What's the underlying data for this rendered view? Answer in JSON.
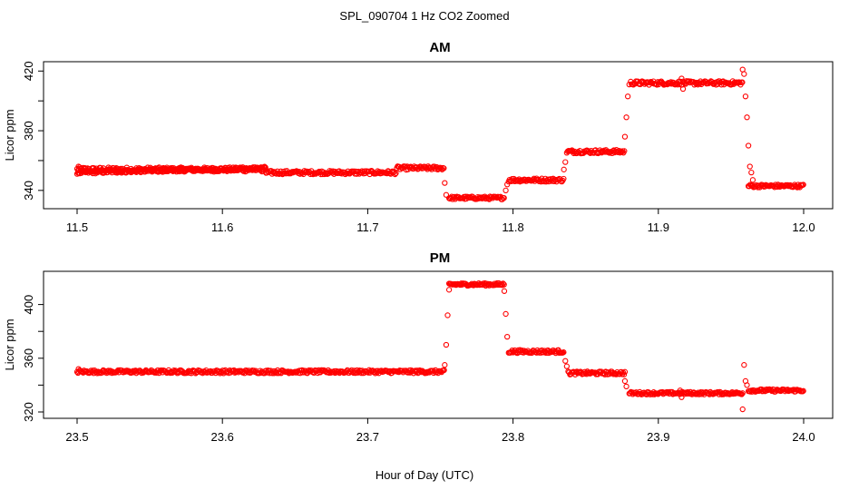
{
  "figure": {
    "title": "SPL_090704  1 Hz CO2 Zoomed",
    "xlabel": "Hour of Day (UTC)"
  },
  "colors": {
    "points": "#ff0000",
    "axis": "#000000"
  },
  "chart_data": [
    {
      "type": "scatter",
      "title": "AM",
      "xlabel": "Hour of Day (UTC)",
      "ylabel": "Licor ppm",
      "xlim": [
        11.5,
        12.0
      ],
      "ylim": [
        332.0,
        422.0
      ],
      "xticks": [
        11.5,
        11.6,
        11.7,
        11.8,
        11.9,
        12.0
      ],
      "xtick_labels": [
        "11.5",
        "11.6",
        "11.7",
        "11.8",
        "11.9",
        "12.0"
      ],
      "yticks": [
        340,
        360,
        380,
        400,
        420
      ],
      "ytick_labels": [
        "340",
        "",
        "380",
        "",
        "420"
      ],
      "marker": "open-circle",
      "color": "#ff0000",
      "segments": [
        {
          "x": [
            11.5,
            11.63
          ],
          "y": [
            354,
            354
          ],
          "jitter": 1.5
        },
        {
          "x": [
            11.5,
            11.63
          ],
          "y": [
            352,
            355
          ],
          "jitter": 1.0
        },
        {
          "x": [
            11.63,
            11.72
          ],
          "y": [
            352,
            352
          ],
          "jitter": 1.2
        },
        {
          "x": [
            11.72,
            11.753
          ],
          "y": [
            355,
            355
          ],
          "jitter": 1.2
        },
        {
          "x": [
            11.756,
            11.794
          ],
          "y": [
            335,
            335
          ],
          "jitter": 1.0
        },
        {
          "x": [
            11.797,
            11.835
          ],
          "y": [
            347,
            347
          ],
          "jitter": 1.2
        },
        {
          "x": [
            11.837,
            11.877
          ],
          "y": [
            366,
            366
          ],
          "jitter": 1.2
        },
        {
          "x": [
            11.881,
            11.958
          ],
          "y": [
            412,
            412
          ],
          "jitter": 1.3
        },
        {
          "x": [
            11.962,
            12.0
          ],
          "y": [
            343,
            343
          ],
          "jitter": 1.0
        }
      ],
      "extra_points": [
        {
          "x": 11.501,
          "y": 356
        },
        {
          "x": 11.753,
          "y": 345
        },
        {
          "x": 11.754,
          "y": 337
        },
        {
          "x": 11.795,
          "y": 340
        },
        {
          "x": 11.796,
          "y": 344
        },
        {
          "x": 11.835,
          "y": 354
        },
        {
          "x": 11.836,
          "y": 359
        },
        {
          "x": 11.877,
          "y": 376
        },
        {
          "x": 11.878,
          "y": 389
        },
        {
          "x": 11.879,
          "y": 403
        },
        {
          "x": 11.88,
          "y": 411
        },
        {
          "x": 11.916,
          "y": 415
        },
        {
          "x": 11.917,
          "y": 408
        },
        {
          "x": 11.958,
          "y": 421
        },
        {
          "x": 11.959,
          "y": 418
        },
        {
          "x": 11.96,
          "y": 403
        },
        {
          "x": 11.961,
          "y": 389
        },
        {
          "x": 11.962,
          "y": 370
        },
        {
          "x": 11.963,
          "y": 356
        },
        {
          "x": 11.964,
          "y": 352
        },
        {
          "x": 11.965,
          "y": 347
        }
      ]
    },
    {
      "type": "scatter",
      "title": "PM",
      "xlabel": "Hour of Day (UTC)",
      "ylabel": "Licor ppm",
      "xlim": [
        23.5,
        24.0
      ],
      "ylim": [
        320.0,
        420.0
      ],
      "xticks": [
        23.5,
        23.6,
        23.7,
        23.8,
        23.9,
        24.0
      ],
      "xtick_labels": [
        "23.5",
        "23.6",
        "23.7",
        "23.8",
        "23.9",
        "24.0"
      ],
      "yticks": [
        320,
        340,
        360,
        380,
        400
      ],
      "ytick_labels": [
        "320",
        "",
        "360",
        "",
        "400"
      ],
      "marker": "open-circle",
      "color": "#ff0000",
      "segments": [
        {
          "x": [
            23.5,
            23.753
          ],
          "y": [
            350,
            350
          ],
          "jitter": 1.2
        },
        {
          "x": [
            23.756,
            23.794
          ],
          "y": [
            415,
            415
          ],
          "jitter": 1.0
        },
        {
          "x": [
            23.797,
            23.835
          ],
          "y": [
            365,
            365
          ],
          "jitter": 1.2
        },
        {
          "x": [
            23.838,
            23.877
          ],
          "y": [
            349,
            349
          ],
          "jitter": 1.2
        },
        {
          "x": [
            23.88,
            23.958
          ],
          "y": [
            334,
            334
          ],
          "jitter": 1.0
        },
        {
          "x": [
            23.962,
            24.0
          ],
          "y": [
            336,
            336
          ],
          "jitter": 1.0
        }
      ],
      "extra_points": [
        {
          "x": 23.501,
          "y": 352
        },
        {
          "x": 23.753,
          "y": 355
        },
        {
          "x": 23.754,
          "y": 370
        },
        {
          "x": 23.755,
          "y": 392
        },
        {
          "x": 23.756,
          "y": 411
        },
        {
          "x": 23.794,
          "y": 410
        },
        {
          "x": 23.795,
          "y": 393
        },
        {
          "x": 23.796,
          "y": 376
        },
        {
          "x": 23.836,
          "y": 358
        },
        {
          "x": 23.837,
          "y": 354
        },
        {
          "x": 23.877,
          "y": 343
        },
        {
          "x": 23.878,
          "y": 339
        },
        {
          "x": 23.915,
          "y": 336
        },
        {
          "x": 23.916,
          "y": 331
        },
        {
          "x": 23.958,
          "y": 322
        },
        {
          "x": 23.959,
          "y": 355
        },
        {
          "x": 23.96,
          "y": 343
        },
        {
          "x": 23.961,
          "y": 340
        }
      ]
    }
  ]
}
